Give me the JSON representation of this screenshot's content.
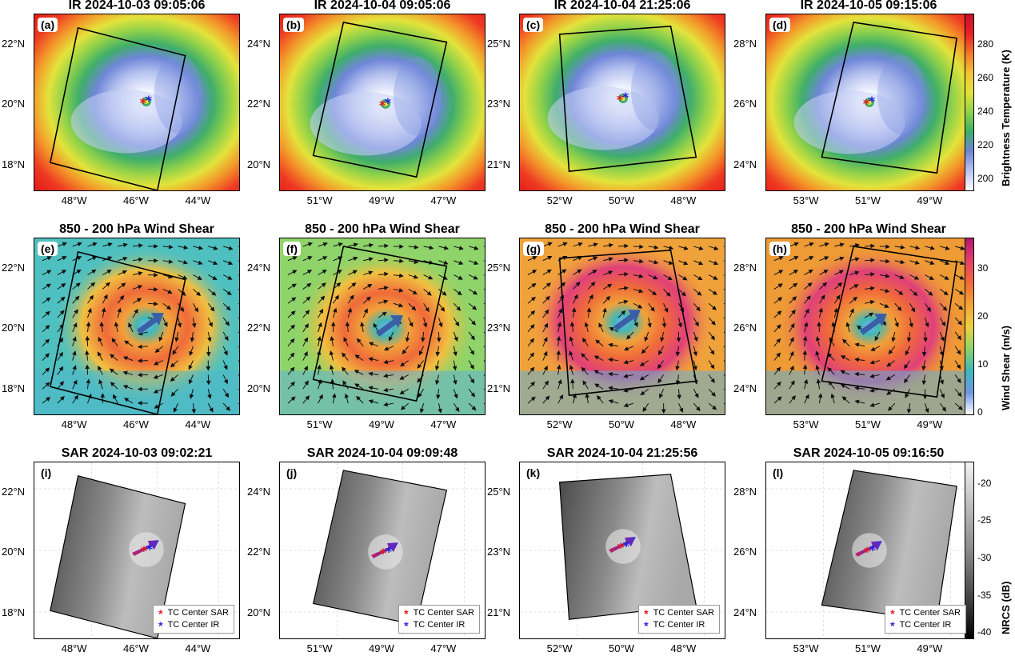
{
  "rows": [
    {
      "kind": "ir",
      "titles": [
        "IR 2024-10-03 09:05:06",
        "IR 2024-10-04 09:05:06",
        "IR 2024-10-04 21:25:06",
        "IR 2024-10-05 09:15:06"
      ],
      "labels": [
        "(a)",
        "(b)",
        "(c)",
        "(d)"
      ],
      "colorbar": {
        "label": "Brightness Temperature (K)",
        "ticks": [
          "280",
          "260",
          "240",
          "220",
          "200"
        ]
      }
    },
    {
      "kind": "shear",
      "titles": [
        "850 - 200 hPa Wind Shear",
        "850 - 200 hPa Wind Shear",
        "850 - 200 hPa Wind Shear",
        "850 - 200 hPa Wind Shear"
      ],
      "labels": [
        "(e)",
        "(f)",
        "(g)",
        "(h)"
      ],
      "colorbar": {
        "label": "Wind Shear (m/s)",
        "ticks": [
          "30",
          "20",
          "10",
          "0"
        ]
      }
    },
    {
      "kind": "sar",
      "titles": [
        "SAR 2024-10-03 09:02:21",
        "SAR 2024-10-04 09:09:48",
        "SAR 2024-10-04 21:25:56",
        "SAR 2024-10-05 09:16:50"
      ],
      "labels": [
        "(i)",
        "(j)",
        "(k)",
        "(l)"
      ],
      "colorbar": {
        "label": "NRCS (dB)",
        "ticks": [
          "-20",
          "-25",
          "-30",
          "-35",
          "-40"
        ]
      }
    }
  ],
  "xticks": [
    [
      "48°W",
      "46°W",
      "44°W"
    ],
    [
      "51°W",
      "49°W",
      "47°W"
    ],
    [
      "52°W",
      "50°W",
      "48°W"
    ],
    [
      "53°W",
      "51°W",
      "49°W"
    ]
  ],
  "yticks": [
    [
      "22°N",
      "20°N",
      "18°N"
    ],
    [
      "24°N",
      "22°N",
      "20°N"
    ],
    [
      "25°N",
      "23°N",
      "21°N"
    ],
    [
      "28°N",
      "26°N",
      "24°N"
    ]
  ],
  "legend": {
    "sar": "TC Center SAR",
    "ir": "TC Center IR"
  },
  "colors": {
    "sar_center": "#e41a1c",
    "ir_center": "#2222dd",
    "shear_arrow": "#3a5fa8"
  }
}
